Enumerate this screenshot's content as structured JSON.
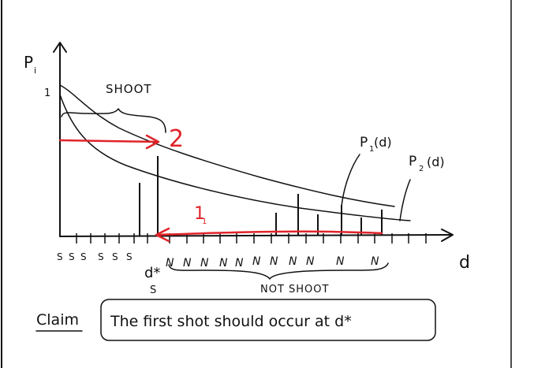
{
  "axes": {
    "y_label": "P",
    "y_label_sub": "i",
    "x_label": "d",
    "y_tick": "1"
  },
  "curves": {
    "p1_label": "P",
    "p1_sub": "1",
    "p1_arg": "(d)",
    "p2_label": "P",
    "p2_sub": "2",
    "p2_arg": "(d)"
  },
  "regions": {
    "shoot_label": "SHOOT",
    "not_shoot_label": "NOT SHOOT",
    "s_marks": [
      "S",
      "S",
      "S",
      "S",
      "S",
      "S"
    ],
    "n_marks": [
      "N",
      "N",
      "N",
      "N",
      "N",
      "N",
      "N",
      "N",
      "N",
      "N",
      "N"
    ],
    "dstar_label": "d*",
    "s_under_dstar": "S"
  },
  "annotations": {
    "arrow_2": "2",
    "arrow_1": "1",
    "arrow_1_sub": "1"
  },
  "claim": {
    "label": "Claim",
    "text": "The first shot should occur at d*"
  },
  "colors": {
    "ink": "#111111",
    "annotation_red": "#e0242a"
  }
}
